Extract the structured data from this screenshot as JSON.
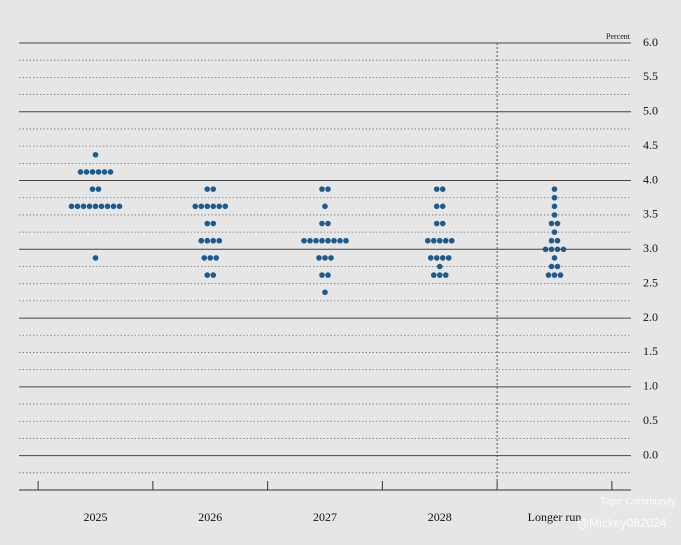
{
  "chart_data": {
    "type": "dot",
    "y_label": "Percent",
    "categories": [
      "2025",
      "2026",
      "2027",
      "2028",
      "Longer run"
    ],
    "dots": [
      {
        "rates": [
          4.375,
          4.125,
          3.875,
          3.625,
          2.875
        ],
        "counts": [
          1,
          6,
          2,
          9,
          1
        ]
      },
      {
        "rates": [
          3.875,
          3.625,
          3.375,
          3.125,
          2.875,
          2.625
        ],
        "counts": [
          2,
          6,
          2,
          4,
          3,
          2
        ]
      },
      {
        "rates": [
          3.875,
          3.625,
          3.375,
          3.125,
          2.875,
          2.625,
          2.375
        ],
        "counts": [
          2,
          1,
          2,
          8,
          3,
          2,
          1
        ]
      },
      {
        "rates": [
          3.875,
          3.625,
          3.375,
          3.125,
          2.875,
          2.75,
          2.625
        ],
        "counts": [
          2,
          2,
          2,
          5,
          4,
          1,
          3
        ]
      },
      {
        "rates": [
          3.875,
          3.75,
          3.625,
          3.5,
          3.375,
          3.25,
          3.125,
          3.0,
          2.875,
          2.75,
          2.625
        ],
        "counts": [
          1,
          1,
          1,
          1,
          2,
          1,
          2,
          4,
          1,
          2,
          3
        ]
      }
    ],
    "color": "#1d5b8f",
    "ylim": [
      -0.5,
      6
    ],
    "yticks": [
      {
        "value": 6,
        "label": "6.0"
      },
      5.5,
      {
        "value": 5,
        "label": "5.0"
      },
      4.5,
      {
        "value": 4,
        "label": "4.0"
      },
      3.5,
      {
        "value": 3,
        "label": "3.0"
      },
      2.5,
      {
        "value": 2,
        "label": "2.0"
      },
      1.5,
      {
        "value": 1,
        "label": "1.0"
      },
      0.5,
      {
        "value": 0,
        "label": "0.0"
      }
    ],
    "minor_yticks": [
      5.75,
      5.25,
      4.75,
      4.25,
      3.75,
      3.25,
      2.75,
      2.25,
      1.75,
      1.25,
      0.75,
      0.25,
      -0.25
    ],
    "grid": true,
    "watermark": [
      "Tiger Community",
      "@Mickey082024"
    ]
  }
}
